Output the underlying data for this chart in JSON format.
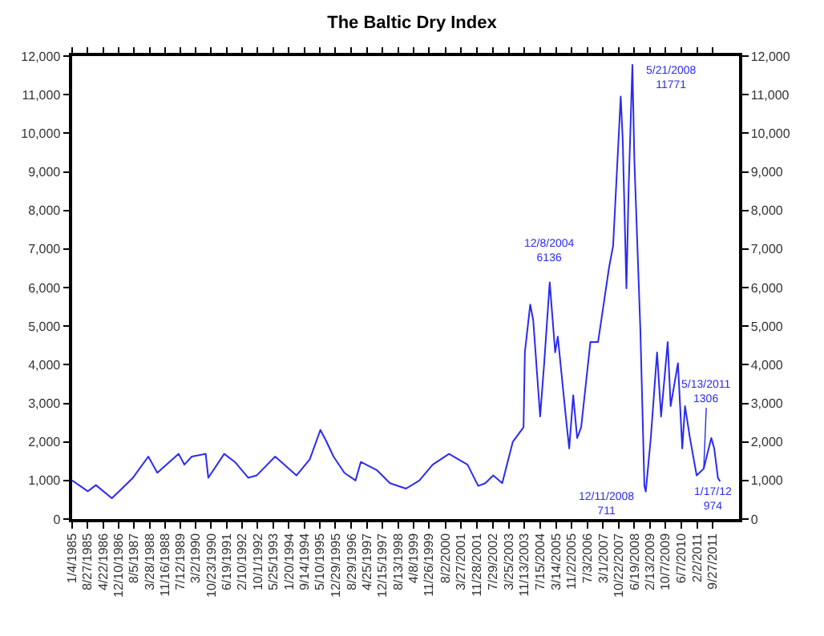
{
  "chart_data": {
    "type": "line",
    "title": "The Baltic Dry Index",
    "x": [
      "1985-01-04",
      "1985-09-01",
      "1986-01-01",
      "1986-09-01",
      "1987-02-01",
      "1987-07-20",
      "1988-03-10",
      "1988-07-25",
      "1989-06-15",
      "1989-09-10",
      "1990-01-01",
      "1990-08-01",
      "1990-09-10",
      "1991-05-10",
      "1991-10-20",
      "1992-05-10",
      "1992-09-15",
      "1993-06-25",
      "1994-05-15",
      "1994-12-05",
      "1995-05-15",
      "1995-08-10",
      "1995-12-01",
      "1996-05-15",
      "1996-11-01",
      "1997-01-20",
      "1997-09-20",
      "1998-04-10",
      "1998-12-10",
      "1999-07-01",
      "2000-01-20",
      "2000-09-25",
      "2001-07-05",
      "2001-12-15",
      "2002-04-01",
      "2002-08-01",
      "2002-12-15",
      "2003-05-25",
      "2003-11-05",
      "2003-11-25",
      "2004-02-15",
      "2004-04-01",
      "2004-07-15",
      "2004-09-15",
      "2004-12-08",
      "2005-03-01",
      "2005-04-10",
      "2005-08-10",
      "2005-10-01",
      "2005-12-01",
      "2006-01-30",
      "2006-04-01",
      "2006-08-20",
      "2006-12-15",
      "2007-06-01",
      "2007-08-01",
      "2007-11-25",
      "2007-12-25",
      "2008-02-20",
      "2008-03-25",
      "2008-05-21",
      "2008-06-20",
      "2008-09-20",
      "2008-11-20",
      "2008-12-11",
      "2009-02-25",
      "2009-06-01",
      "2009-08-01",
      "2009-11-10",
      "2009-12-25",
      "2010-04-15",
      "2010-06-20",
      "2010-08-01",
      "2010-10-15",
      "2011-01-25",
      "2011-05-13",
      "2011-09-05",
      "2011-10-20",
      "2011-12-15",
      "2012-01-17"
    ],
    "series": [
      {
        "color": "#2b2bf0",
        "values": [
          1000,
          720,
          880,
          540,
          790,
          1070,
          1620,
          1200,
          1690,
          1410,
          1620,
          1690,
          1070,
          1690,
          1480,
          1070,
          1130,
          1620,
          1130,
          1550,
          2310,
          2030,
          1620,
          1200,
          1000,
          1480,
          1270,
          930,
          790,
          1000,
          1410,
          1690,
          1410,
          860,
          930,
          1130,
          930,
          2000,
          2380,
          4320,
          5560,
          5150,
          2660,
          4040,
          6136,
          4320,
          4730,
          2660,
          1830,
          3210,
          2100,
          2380,
          4590,
          4590,
          6530,
          7080,
          10950,
          9850,
          5980,
          8600,
          11771,
          9300,
          4870,
          860,
          711,
          2100,
          4320,
          2660,
          4590,
          2930,
          4040,
          1830,
          2930,
          2100,
          1130,
          1306,
          2100,
          1830,
          1070,
          974
        ]
      }
    ],
    "xlim": [
      "1985-01-04",
      "2012-11-01"
    ],
    "xticks": [
      {
        "value": "1985-01-04",
        "label": "1/4/1985"
      },
      {
        "value": "1985-08-27",
        "label": "8/27/1985"
      },
      {
        "value": "1986-04-22",
        "label": "4/22/1986"
      },
      {
        "value": "1986-12-10",
        "label": "12/10/1986"
      },
      {
        "value": "1987-08-05",
        "label": "8/5/1987"
      },
      {
        "value": "1988-03-28",
        "label": "3/28/1988"
      },
      {
        "value": "1988-11-16",
        "label": "11/16/1988"
      },
      {
        "value": "1989-07-12",
        "label": "7/12/1989"
      },
      {
        "value": "1990-03-02",
        "label": "3/2/1990"
      },
      {
        "value": "1990-10-23",
        "label": "10/23/1990"
      },
      {
        "value": "1991-06-19",
        "label": "6/19/1991"
      },
      {
        "value": "1992-02-10",
        "label": "2/10/1992"
      },
      {
        "value": "1992-10-01",
        "label": "10/1/1992"
      },
      {
        "value": "1993-05-25",
        "label": "5/25/1993"
      },
      {
        "value": "1994-01-20",
        "label": "1/20/1994"
      },
      {
        "value": "1994-09-14",
        "label": "9/14/1994"
      },
      {
        "value": "1995-05-10",
        "label": "5/10/1995"
      },
      {
        "value": "1995-12-29",
        "label": "12/29/1995"
      },
      {
        "value": "1996-08-29",
        "label": "8/29/1996"
      },
      {
        "value": "1997-04-25",
        "label": "4/25/1997"
      },
      {
        "value": "1997-12-15",
        "label": "12/15/1997"
      },
      {
        "value": "1998-08-13",
        "label": "8/13/1998"
      },
      {
        "value": "1999-04-08",
        "label": "4/8/1999"
      },
      {
        "value": "1999-11-26",
        "label": "11/26/1999"
      },
      {
        "value": "2000-08-02",
        "label": "8/2/2000"
      },
      {
        "value": "2001-03-27",
        "label": "3/27/2001"
      },
      {
        "value": "2001-11-28",
        "label": "11/28/2001"
      },
      {
        "value": "2002-07-29",
        "label": "7/29/2002"
      },
      {
        "value": "2003-03-25",
        "label": "3/25/2003"
      },
      {
        "value": "2003-11-13",
        "label": "11/13/2003"
      },
      {
        "value": "2004-07-15",
        "label": "7/15/2004"
      },
      {
        "value": "2005-03-14",
        "label": "3/14/2005"
      },
      {
        "value": "2005-11-02",
        "label": "11/2/2005"
      },
      {
        "value": "2006-07-03",
        "label": "7/3/2006"
      },
      {
        "value": "2007-03-01",
        "label": "3/1/2007"
      },
      {
        "value": "2007-10-22",
        "label": "10/22/2007"
      },
      {
        "value": "2008-06-19",
        "label": "6/19/2008"
      },
      {
        "value": "2009-02-13",
        "label": "2/13/2009"
      },
      {
        "value": "2009-10-07",
        "label": "10/7/2009"
      },
      {
        "value": "2010-06-07",
        "label": "6/7/2010"
      },
      {
        "value": "2011-02-02",
        "label": "2/2/2011"
      },
      {
        "value": "2011-09-27",
        "label": "9/27/2011"
      }
    ],
    "ylim": [
      0,
      12000
    ],
    "yticks": [
      0,
      {
        "value": 1000,
        "label": "1,000"
      },
      {
        "value": 2000,
        "label": "2,000"
      },
      {
        "value": 3000,
        "label": "3,000"
      },
      {
        "value": 4000,
        "label": "4,000"
      },
      {
        "value": 5000,
        "label": "5,000"
      },
      {
        "value": 6000,
        "label": "6,000"
      },
      {
        "value": 7000,
        "label": "7,000"
      },
      {
        "value": 8000,
        "label": "8,000"
      },
      {
        "value": 9000,
        "label": "9,000"
      },
      {
        "value": 10000,
        "label": "10,000"
      },
      {
        "value": 11000,
        "label": "11,000"
      },
      {
        "value": 12000,
        "label": "12,000"
      }
    ],
    "y2lim": [
      0,
      12000
    ],
    "y2ticks": [
      0,
      {
        "value": 1000,
        "label": "1,000"
      },
      {
        "value": 2000,
        "label": "2,000"
      },
      {
        "value": 3000,
        "label": "3,000"
      },
      {
        "value": 4000,
        "label": "4,000"
      },
      {
        "value": 5000,
        "label": "5,000"
      },
      {
        "value": 6000,
        "label": "6,000"
      },
      {
        "value": 7000,
        "label": "7,000"
      },
      {
        "value": 8000,
        "label": "8,000"
      },
      {
        "value": 9000,
        "label": "9,000"
      },
      {
        "value": 10000,
        "label": "10,000"
      },
      {
        "value": 11000,
        "label": "11,000"
      },
      {
        "value": 12000,
        "label": "12,000"
      }
    ],
    "annotations": [
      {
        "text": "12/8/2004\n6136",
        "x": "2004-12-08",
        "y": 6136
      },
      {
        "text": "5/21/2008\n11771",
        "x": "2008-05-21",
        "y": 11771
      },
      {
        "text": "12/11/2008\n711",
        "x": "2008-12-11",
        "y": 711
      },
      {
        "text": "5/13/2011\n1306",
        "x": "2011-05-13",
        "y": 1306
      },
      {
        "text": "1/17/12\n974",
        "x": "2012-01-17",
        "y": 974
      }
    ],
    "marker": "none",
    "line_style": "solid"
  }
}
